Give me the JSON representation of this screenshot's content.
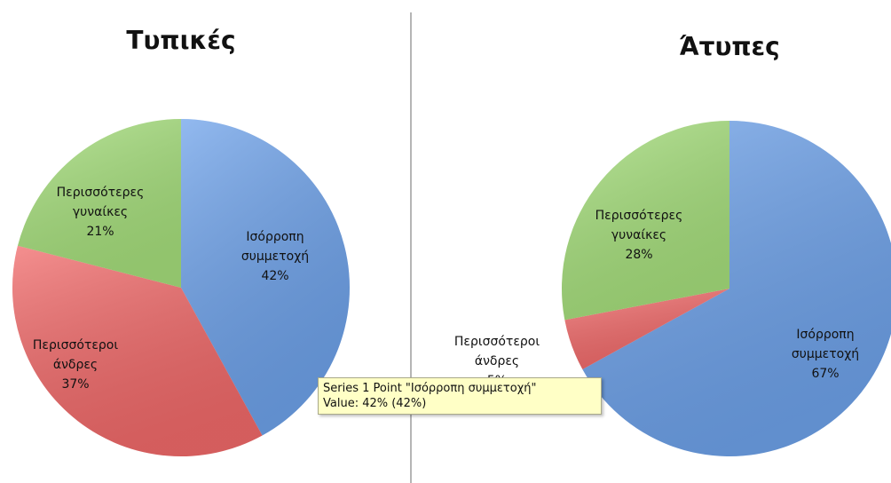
{
  "chart_data": [
    {
      "type": "pie",
      "title": "Τυπικές",
      "categories": [
        "Ισόρροπη συμμετοχή",
        "Περισσότεροι άνδρες",
        "Περισσότερες γυναίκες"
      ],
      "values": [
        42,
        37,
        21
      ],
      "value_labels": [
        "42%",
        "37%",
        "21%"
      ],
      "colors": [
        "#6ea2ea",
        "#f16a6a",
        "#a6df7c"
      ]
    },
    {
      "type": "pie",
      "title": "Άτυπες",
      "categories": [
        "Ισόρροπη συμμετοχή",
        "Περισσότεροι άνδρες",
        "Περισσότερες γυναίκες"
      ],
      "values": [
        67,
        5,
        28
      ],
      "value_labels": [
        "67%",
        "5%",
        "28%"
      ],
      "colors": [
        "#6ea2ea",
        "#f16a6a",
        "#a6df7c"
      ]
    }
  ],
  "tooltip": {
    "lines": [
      "Series 1 Point \"Ισόρροπη συμμετοχή\"",
      "Value: 42% (42%)"
    ]
  }
}
